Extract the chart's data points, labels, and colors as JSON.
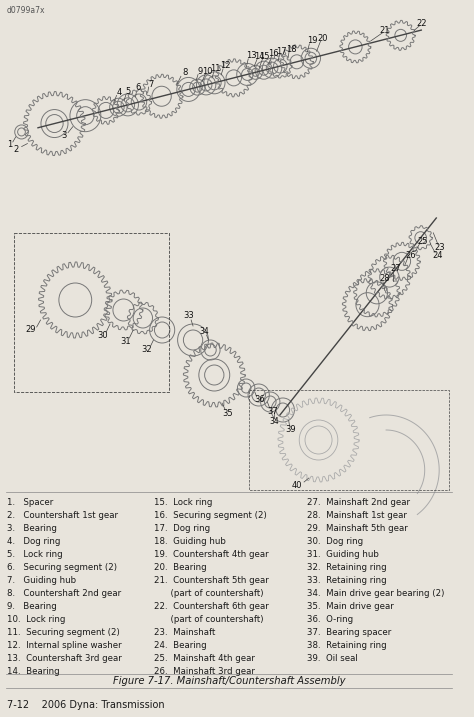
{
  "title": "Figure 7-17. Mainshaft/Countershaft Assembly",
  "footer": "7-12    2006 Dyna: Transmission",
  "header_code": "d0799a7x",
  "background_color": "#e8e4dc",
  "text_color": "#1a1a1a",
  "legend_col1": [
    "1.   Spacer",
    "2.   Countershaft 1st gear",
    "3.   Bearing",
    "4.   Dog ring",
    "5.   Lock ring",
    "6.   Securing segment (2)",
    "7.   Guiding hub",
    "8.   Countershaft 2nd gear",
    "9.   Bearing",
    "10.  Lock ring",
    "11.  Securing segment (2)",
    "12.  Internal spline washer",
    "13.  Countershaft 3rd gear",
    "14.  Bearing"
  ],
  "legend_col2": [
    "15.  Lock ring",
    "16.  Securing segment (2)",
    "17.  Dog ring",
    "18.  Guiding hub",
    "19.  Countershaft 4th gear",
    "20.  Bearing",
    "21.  Countershaft 5th gear",
    "      (part of countershaft)",
    "22.  Countershaft 6th gear",
    "      (part of countershaft)",
    "23.  Mainshaft",
    "24.  Bearing",
    "25.  Mainshaft 4th gear",
    "26.  Mainshaft 3rd gear"
  ],
  "legend_col3": [
    "27.  Mainshaft 2nd gear",
    "28.  Mainshaft 1st gear",
    "29.  Mainshaft 5th gear",
    "30.  Dog ring",
    "31.  Guiding hub",
    "32.  Retaining ring",
    "33.  Retaining ring",
    "34.  Main drive gear bearing (2)",
    "35.  Main drive gear",
    "36.  O-ring",
    "37.  Bearing spacer",
    "38.  Retaining ring",
    "39.  Oil seal"
  ],
  "font_size_legend": 6.2,
  "font_size_title": 7.2,
  "font_size_footer": 7.0,
  "font_size_code": 5.5
}
